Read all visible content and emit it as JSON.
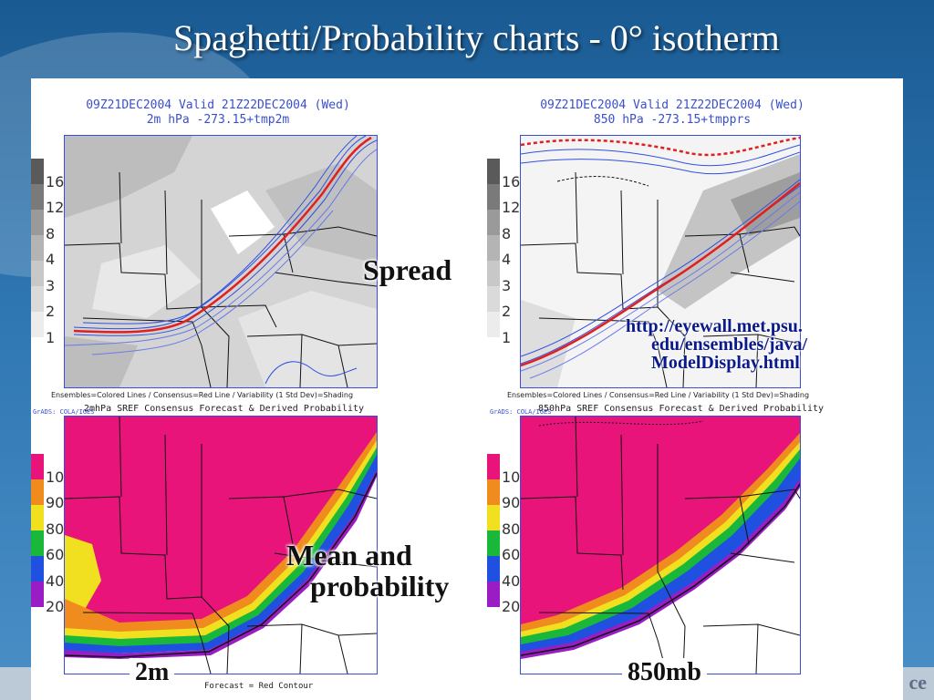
{
  "slide": {
    "title": "Spaghetti/Probability charts - 0° isotherm",
    "corner_text": "ce"
  },
  "left_chart": {
    "header_line1": "09Z21DEC2004  Valid 21Z22DEC2004 (Wed)",
    "header_line2": "2m hPa  -273.15+tmp2m",
    "caption": "Ensembles=Colored Lines / Consensus=Red Line / Variability (1 Std Dev)=Shading",
    "grads": "GrADS: COLA/IGES",
    "sref_title": "2mhPa SREF Consensus Forecast & Derived Probability",
    "forecast_note": "Forecast = Red Contour",
    "spread_ticks": [
      "16",
      "12",
      "8",
      "4",
      "3",
      "2",
      "1"
    ],
    "prob_ticks": [
      "10",
      "90",
      "80",
      "60",
      "40",
      "20"
    ],
    "bottom_label": "2m"
  },
  "right_chart": {
    "header_line1": "09Z21DEC2004  Valid 21Z22DEC2004 (Wed)",
    "header_line2": "850 hPa  -273.15+tmpprs",
    "caption": "Ensembles=Colored Lines / Consensus=Red Line / Variability (1 Std Dev)=Shading",
    "grads": "GrADS: COLA/IGES",
    "sref_title": "850hPa SREF Consensus Forecast & Derived Probability",
    "spread_ticks": [
      "16",
      "12",
      "8",
      "4",
      "3",
      "2",
      "1"
    ],
    "prob_ticks": [
      "10",
      "90",
      "80",
      "60",
      "40",
      "20"
    ],
    "bottom_label": "850mb"
  },
  "annotations": {
    "spread": "Spread",
    "mean_line1": "Mean and",
    "mean_line2": "probability",
    "link_line1": "http://eyewall.met.psu.",
    "link_line2": "edu/ensembles/java/",
    "link_line3": "ModelDisplay.html"
  },
  "colors": {
    "probability_magenta": "#e8147a",
    "probability_orange": "#f08b1e",
    "probability_yellow": "#f0e020",
    "probability_green": "#19b83a",
    "probability_blue": "#2050e0",
    "probability_purple": "#9a1cc4",
    "consensus_red": "#e02020",
    "ensemble_blue": "#3050e0"
  }
}
